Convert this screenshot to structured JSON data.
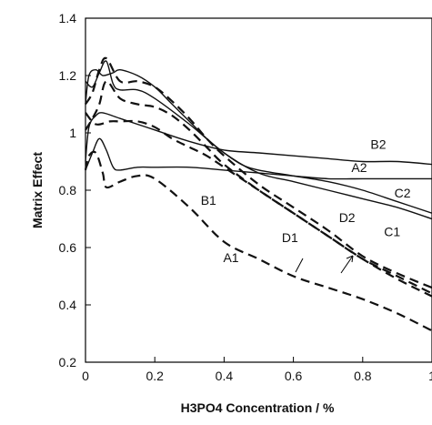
{
  "chart_data": {
    "type": "line",
    "title": "",
    "xlabel": "H3PO4 Concentration / %",
    "ylabel": "Matrix Effect",
    "xlim": [
      0,
      1
    ],
    "ylim": [
      0.2,
      1.4
    ],
    "x_ticks": [
      0,
      0.2,
      0.4,
      0.6,
      0.8,
      1
    ],
    "x_tick_labels": [
      "0",
      "0.2",
      "0.4",
      "0.6",
      "0.8",
      "1"
    ],
    "y_ticks": [
      0.2,
      0.4,
      0.6,
      0.8,
      1,
      1.2,
      1.4
    ],
    "y_tick_labels": [
      "0.2",
      "0.4",
      "0.6",
      "0.8",
      "1",
      "1.2",
      "1.4"
    ],
    "grid": false,
    "series": [
      {
        "name": "A1",
        "style": "dashed",
        "label_at": [
          0.42,
          0.565
        ],
        "x": [
          0,
          0.01,
          0.03,
          0.05,
          0.06,
          0.1,
          0.15,
          0.2,
          0.3,
          0.4,
          0.5,
          0.6,
          0.7,
          0.8,
          0.9,
          1.0
        ],
        "y": [
          0.87,
          0.92,
          0.93,
          0.86,
          0.81,
          0.83,
          0.85,
          0.84,
          0.74,
          0.62,
          0.56,
          0.5,
          0.46,
          0.42,
          0.37,
          0.31
        ]
      },
      {
        "name": "B1",
        "style": "dashed",
        "label_at": [
          0.355,
          0.765
        ],
        "x": [
          0,
          0.02,
          0.04,
          0.06,
          0.1,
          0.15,
          0.2,
          0.25,
          0.3,
          0.35,
          0.4,
          0.5,
          0.6,
          0.7,
          0.8,
          0.9,
          1.0
        ],
        "y": [
          1.01,
          1.05,
          1.1,
          1.18,
          1.12,
          1.1,
          1.09,
          1.06,
          1.01,
          0.95,
          0.89,
          0.8,
          0.72,
          0.64,
          0.56,
          0.5,
          0.44
        ]
      },
      {
        "name": "C1",
        "style": "dashed",
        "label_at": [
          0.885,
          0.655
        ],
        "x": [
          0,
          0.02,
          0.04,
          0.06,
          0.1,
          0.15,
          0.2,
          0.25,
          0.3,
          0.35,
          0.4,
          0.5,
          0.6,
          0.7,
          0.8,
          0.9,
          1.0
        ],
        "y": [
          1.1,
          1.14,
          1.22,
          1.26,
          1.18,
          1.18,
          1.16,
          1.11,
          1.05,
          0.98,
          0.92,
          0.82,
          0.74,
          0.66,
          0.57,
          0.51,
          0.46
        ]
      },
      {
        "name": "D1",
        "style": "dashed",
        "label_at": [
          0.59,
          0.635
        ],
        "x": [
          0,
          0.03,
          0.07,
          0.1,
          0.15,
          0.2,
          0.25,
          0.3,
          0.35,
          0.4,
          0.5,
          0.6,
          0.7,
          0.8,
          0.9,
          1.0
        ],
        "y": [
          1.07,
          1.03,
          1.04,
          1.04,
          1.04,
          1.02,
          0.98,
          0.95,
          0.92,
          0.88,
          0.8,
          0.72,
          0.64,
          0.56,
          0.49,
          0.43
        ]
      },
      {
        "name": "A2",
        "style": "solid",
        "label_at": [
          0.79,
          0.88
        ],
        "x": [
          0,
          0.02,
          0.04,
          0.06,
          0.08,
          0.1,
          0.15,
          0.2,
          0.3,
          0.4,
          0.5,
          0.6,
          0.7,
          0.8,
          0.9,
          1.0
        ],
        "y": [
          0.87,
          0.93,
          0.98,
          0.94,
          0.88,
          0.87,
          0.88,
          0.88,
          0.88,
          0.87,
          0.86,
          0.85,
          0.84,
          0.84,
          0.84,
          0.84
        ]
      },
      {
        "name": "B2",
        "style": "solid",
        "label_at": [
          0.845,
          0.96
        ],
        "x": [
          0,
          0.01,
          0.03,
          0.05,
          0.1,
          0.2,
          0.3,
          0.4,
          0.5,
          0.6,
          0.7,
          0.8,
          0.9,
          1.0
        ],
        "y": [
          0.9,
          1.02,
          1.06,
          1.07,
          1.05,
          1.01,
          0.97,
          0.94,
          0.93,
          0.92,
          0.91,
          0.9,
          0.9,
          0.89
        ]
      },
      {
        "name": "C2",
        "style": "solid",
        "label_at": [
          0.915,
          0.79
        ],
        "x": [
          0,
          0.01,
          0.03,
          0.05,
          0.08,
          0.1,
          0.15,
          0.2,
          0.25,
          0.3,
          0.35,
          0.4,
          0.45,
          0.5,
          0.6,
          0.7,
          0.8,
          0.9,
          1.0
        ],
        "y": [
          1.1,
          1.2,
          1.22,
          1.2,
          1.21,
          1.22,
          1.2,
          1.16,
          1.1,
          1.04,
          0.98,
          0.93,
          0.89,
          0.87,
          0.85,
          0.83,
          0.8,
          0.76,
          0.72
        ]
      },
      {
        "name": "D2",
        "style": "solid",
        "label_at": [
          0.755,
          0.705
        ],
        "x": [
          0,
          0.02,
          0.04,
          0.06,
          0.08,
          0.1,
          0.15,
          0.2,
          0.3,
          0.4,
          0.5,
          0.6,
          0.7,
          0.8,
          0.9,
          1.0
        ],
        "y": [
          1.18,
          1.16,
          1.21,
          1.25,
          1.17,
          1.15,
          1.15,
          1.12,
          1.03,
          0.93,
          0.86,
          0.83,
          0.8,
          0.77,
          0.74,
          0.7
        ]
      }
    ]
  }
}
